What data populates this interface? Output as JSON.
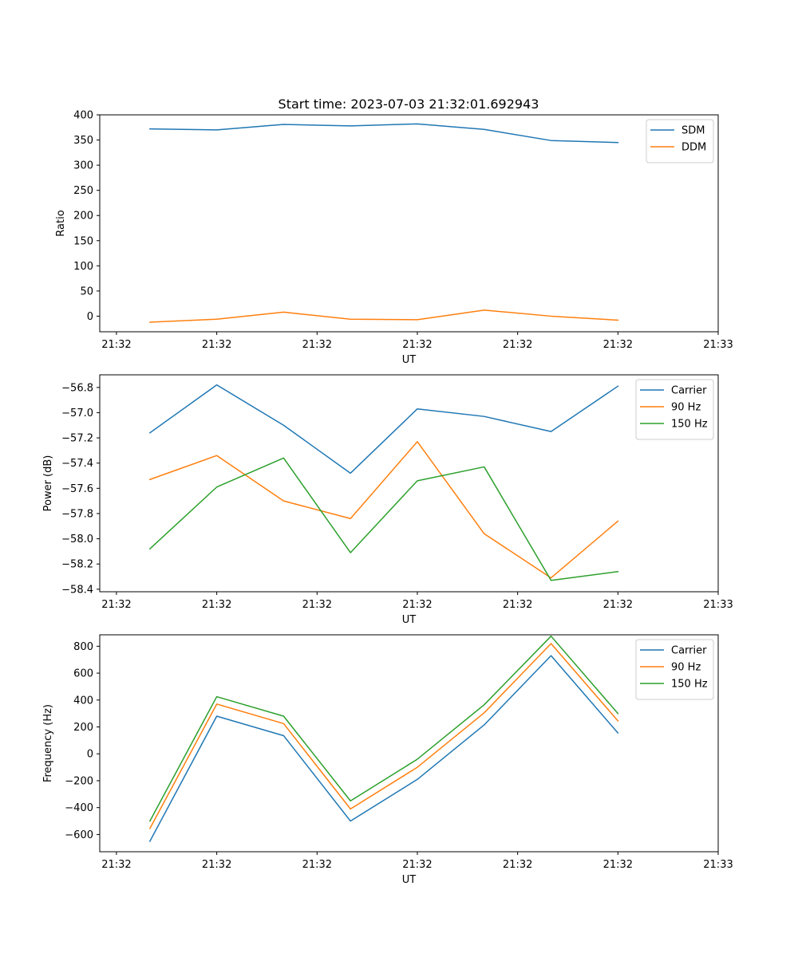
{
  "figure_title": "Start time: 2023-07-03 21:32:01.692943",
  "chart_data": [
    {
      "type": "line",
      "title": "Start time: 2023-07-03 21:32:01.692943",
      "xlabel": "UT",
      "ylabel": "Ratio",
      "x": [
        1,
        2,
        3,
        4,
        5,
        6,
        7,
        8
      ],
      "x_tick_labels": [
        "21:32",
        "21:32",
        "21:32",
        "21:32",
        "21:32",
        "21:32",
        "21:33"
      ],
      "xlim": [
        0.25,
        9.5
      ],
      "ylim": [
        -31,
        400
      ],
      "yticks": [
        0,
        50,
        100,
        150,
        200,
        250,
        300,
        350,
        400
      ],
      "legend": "top-right",
      "series": [
        {
          "name": "SDM",
          "color": "#1f77b4",
          "values": [
            372,
            370,
            381,
            378,
            382,
            371,
            349,
            345
          ]
        },
        {
          "name": "DDM",
          "color": "#ff7f0e",
          "values": [
            -12,
            -6,
            8,
            -6,
            -7,
            12,
            0,
            -8
          ]
        }
      ]
    },
    {
      "type": "line",
      "xlabel": "UT",
      "ylabel": "Power (dB)",
      "x": [
        1,
        2,
        3,
        4,
        5,
        6,
        7,
        8
      ],
      "x_tick_labels": [
        "21:32",
        "21:32",
        "21:32",
        "21:32",
        "21:32",
        "21:32",
        "21:33"
      ],
      "xlim": [
        0.25,
        9.5
      ],
      "ylim": [
        -58.42,
        -56.7
      ],
      "yticks": [
        -58.4,
        -58.2,
        -58.0,
        -57.8,
        -57.6,
        -57.4,
        -57.2,
        -57.0,
        -56.8
      ],
      "ytick_labels": [
        "−58.4",
        "−58.2",
        "−58.0",
        "−57.8",
        "−57.6",
        "−57.4",
        "−57.2",
        "−57.0",
        "−56.8"
      ],
      "legend": "top-right",
      "series": [
        {
          "name": "Carrier",
          "color": "#1f77b4",
          "values": [
            -57.16,
            -56.78,
            -57.1,
            -57.48,
            -56.97,
            -57.03,
            -57.15,
            -56.79
          ]
        },
        {
          "name": "90 Hz",
          "color": "#ff7f0e",
          "values": [
            -57.53,
            -57.34,
            -57.7,
            -57.84,
            -57.23,
            -57.96,
            -58.31,
            -57.86
          ]
        },
        {
          "name": "150 Hz",
          "color": "#2ca02c",
          "values": [
            -58.08,
            -57.59,
            -57.36,
            -58.11,
            -57.54,
            -57.43,
            -58.33,
            -58.26
          ]
        }
      ]
    },
    {
      "type": "line",
      "xlabel": "UT",
      "ylabel": "Frequency (Hz)",
      "x": [
        1,
        2,
        3,
        4,
        5,
        6,
        7,
        8
      ],
      "x_tick_labels": [
        "21:32",
        "21:32",
        "21:32",
        "21:32",
        "21:32",
        "21:32",
        "21:33"
      ],
      "xlim": [
        0.25,
        9.5
      ],
      "ylim": [
        -728,
        885
      ],
      "yticks": [
        -600,
        -400,
        -200,
        0,
        200,
        400,
        600,
        800
      ],
      "ytick_labels": [
        "−600",
        "−400",
        "−200",
        "0",
        "200",
        "400",
        "600",
        "800"
      ],
      "legend": "top-right",
      "series": [
        {
          "name": "Carrier",
          "color": "#1f77b4",
          "values": [
            -650,
            280,
            135,
            -500,
            -190,
            215,
            730,
            155
          ]
        },
        {
          "name": "90 Hz",
          "color": "#ff7f0e",
          "values": [
            -555,
            370,
            225,
            -410,
            -100,
            305,
            820,
            245
          ]
        },
        {
          "name": "150 Hz",
          "color": "#2ca02c",
          "values": [
            -500,
            425,
            280,
            -350,
            -40,
            365,
            875,
            300
          ]
        }
      ]
    }
  ]
}
